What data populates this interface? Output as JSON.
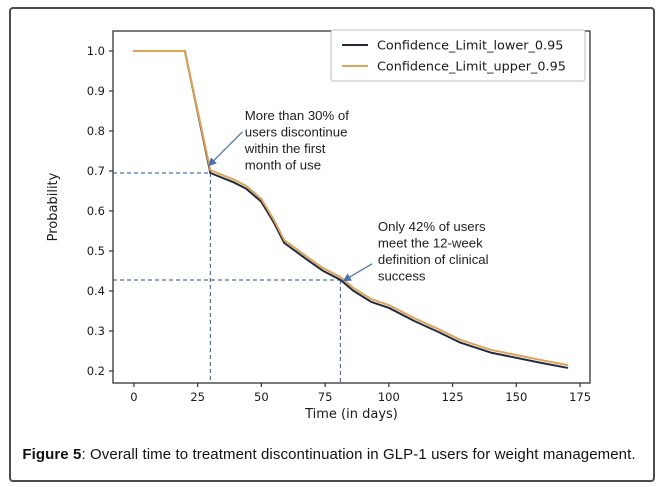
{
  "figure": {
    "caption_prefix": "Figure 5",
    "caption_rest": ": Overall time to treatment discontinuation in GLP-1 users for weight management."
  },
  "colors": {
    "outer_border": "#4c4c4c",
    "spine": "#333333",
    "tick_label": "#1a1a1a",
    "annotation_text": "#1f1f1f",
    "legend_border": "#c9c9c9",
    "legend_bg": "#ffffff"
  },
  "chart_data": {
    "type": "line",
    "title": "",
    "xlabel": "Time (in days)",
    "ylabel": "Probability",
    "xlim": [
      -8.2,
      178.9
    ],
    "ylim": [
      0.17,
      1.05
    ],
    "xticks": [
      0,
      25,
      50,
      75,
      100,
      125,
      150,
      175
    ],
    "yticks": [
      0.2,
      0.3,
      0.4,
      0.5,
      0.6,
      0.7,
      0.8,
      0.9,
      1.0
    ],
    "grid": false,
    "legend": {
      "position": "upper right",
      "entries": [
        {
          "label": "Confidence_Limit_lower_0.95",
          "color": "#222b3d"
        },
        {
          "label": "Confidence_Limit_upper_0.95",
          "color": "#dda45b"
        }
      ]
    },
    "series": [
      {
        "name": "Confidence_Limit_lower_0.95",
        "color": "#222b3d",
        "points": [
          [
            0,
            1.0
          ],
          [
            20,
            1.0
          ],
          [
            30,
            0.695
          ],
          [
            39,
            0.672
          ],
          [
            44,
            0.656
          ],
          [
            50,
            0.623
          ],
          [
            55,
            0.57
          ],
          [
            59,
            0.52
          ],
          [
            68,
            0.478
          ],
          [
            74,
            0.451
          ],
          [
            81,
            0.428
          ],
          [
            86,
            0.401
          ],
          [
            93,
            0.373
          ],
          [
            100,
            0.358
          ],
          [
            110,
            0.325
          ],
          [
            120,
            0.296
          ],
          [
            128,
            0.271
          ],
          [
            140,
            0.246
          ],
          [
            150,
            0.233
          ],
          [
            160,
            0.22
          ],
          [
            170,
            0.208
          ]
        ]
      },
      {
        "name": "Confidence_Limit_upper_0.95",
        "color": "#dda45b",
        "points": [
          [
            0,
            1.0
          ],
          [
            20,
            1.0
          ],
          [
            30,
            0.702
          ],
          [
            39,
            0.679
          ],
          [
            44,
            0.663
          ],
          [
            50,
            0.63
          ],
          [
            55,
            0.577
          ],
          [
            59,
            0.527
          ],
          [
            68,
            0.485
          ],
          [
            74,
            0.458
          ],
          [
            81,
            0.435
          ],
          [
            86,
            0.408
          ],
          [
            93,
            0.38
          ],
          [
            100,
            0.365
          ],
          [
            110,
            0.332
          ],
          [
            120,
            0.303
          ],
          [
            128,
            0.278
          ],
          [
            140,
            0.253
          ],
          [
            150,
            0.24
          ],
          [
            160,
            0.227
          ],
          [
            170,
            0.215
          ]
        ]
      }
    ],
    "reference_crosshairs": [
      {
        "x": 30,
        "y": 0.695
      },
      {
        "x": 81,
        "y": 0.4275
      }
    ],
    "annotations": [
      {
        "lines": [
          "More than 30% of",
          "users discontinue",
          "within the first",
          "month of use"
        ],
        "text_x": 43.5,
        "text_y": 0.828,
        "arrow_from": [
          42.6,
          0.798
        ],
        "arrow_to": [
          29.4,
          0.714
        ]
      },
      {
        "lines": [
          "Only 42% of users",
          "meet the 12-week",
          "definition of clinical",
          "success"
        ],
        "text_x": 95.7,
        "text_y": 0.55,
        "arrow_from": [
          93.4,
          0.468
        ],
        "arrow_to": [
          82.3,
          0.426
        ]
      }
    ],
    "accent_colors": {
      "reference": "#4a73ad",
      "arrow": "#4a73ad"
    }
  }
}
